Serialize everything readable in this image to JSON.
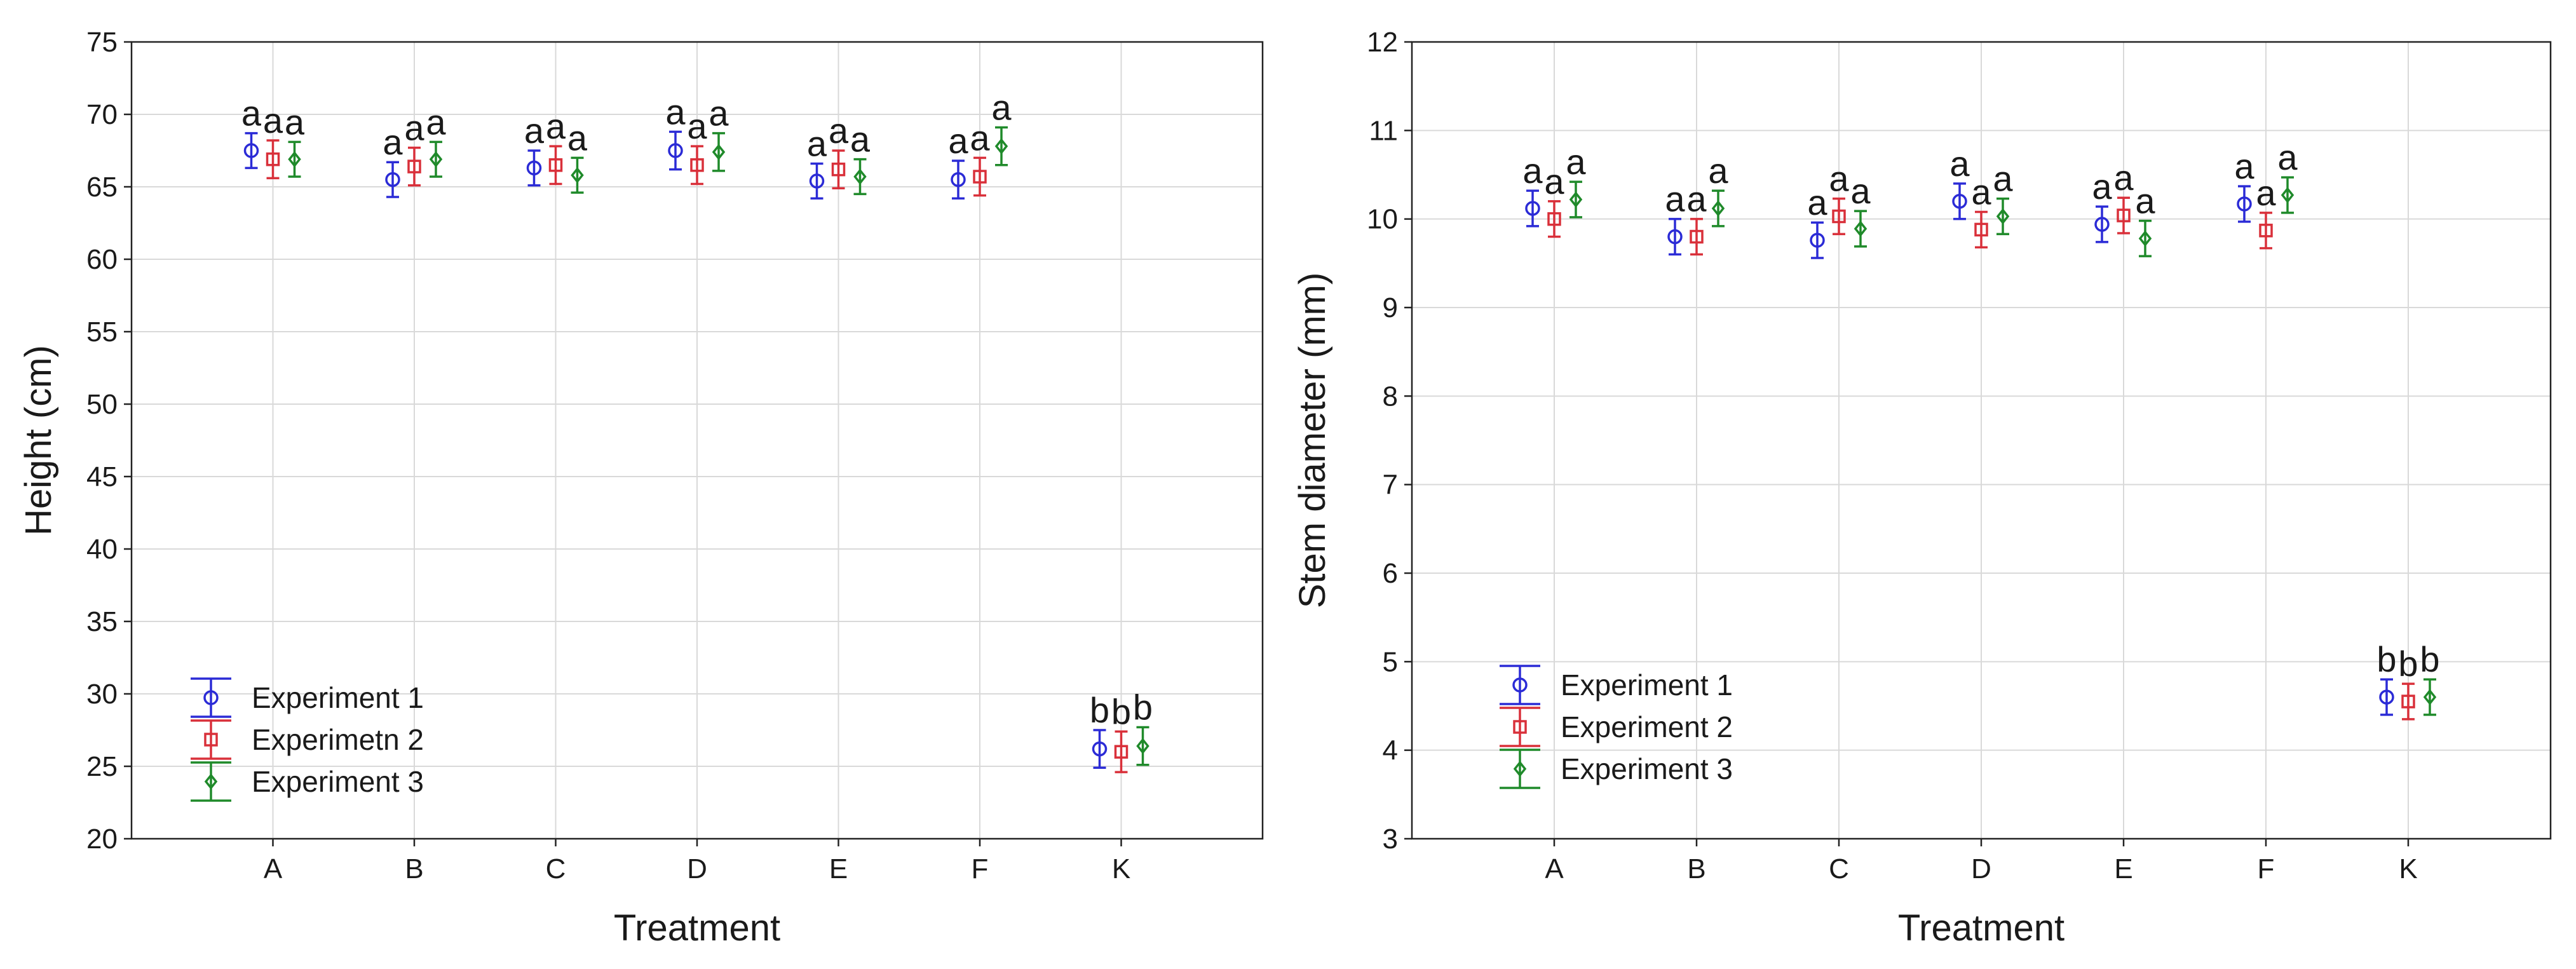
{
  "chart_data": [
    {
      "type": "scatter",
      "xlabel": "Treatment",
      "ylabel": "Height (cm)",
      "categories": [
        "A",
        "B",
        "C",
        "D",
        "E",
        "F",
        "K"
      ],
      "ylim": [
        20,
        75
      ],
      "yticks": [
        20,
        25,
        30,
        35,
        40,
        45,
        50,
        55,
        60,
        65,
        70,
        75
      ],
      "grid": true,
      "legend_position": "bottom-left",
      "series": [
        {
          "name": "Experiment 1",
          "color": "#2b2bd6",
          "marker": "circle",
          "values": [
            67.5,
            65.5,
            66.3,
            67.5,
            65.4,
            65.5,
            26.2
          ],
          "error": [
            1.2,
            1.2,
            1.2,
            1.3,
            1.2,
            1.3,
            1.3
          ],
          "letters": [
            "a",
            "a",
            "a",
            "a",
            "a",
            "a",
            "b"
          ]
        },
        {
          "name": "Experimetn 2",
          "color": "#d9303a",
          "marker": "square",
          "values": [
            66.9,
            66.4,
            66.5,
            66.5,
            66.2,
            65.7,
            26.0
          ],
          "error": [
            1.3,
            1.3,
            1.3,
            1.3,
            1.3,
            1.3,
            1.4
          ],
          "letters": [
            "a",
            "a",
            "a",
            "a",
            "a",
            "a",
            "b"
          ]
        },
        {
          "name": "Experiment 3",
          "color": "#1f8a2a",
          "marker": "diamond",
          "values": [
            66.9,
            66.9,
            65.8,
            67.4,
            65.7,
            67.8,
            26.4
          ],
          "error": [
            1.2,
            1.2,
            1.2,
            1.3,
            1.2,
            1.3,
            1.3
          ],
          "letters": [
            "a",
            "a",
            "a",
            "a",
            "a",
            "a",
            "b"
          ]
        }
      ]
    },
    {
      "type": "scatter",
      "xlabel": "Treatment",
      "ylabel": "Stem diameter (mm)",
      "categories": [
        "A",
        "B",
        "C",
        "D",
        "E",
        "F",
        "K"
      ],
      "ylim": [
        3,
        12
      ],
      "yticks": [
        3,
        4,
        5,
        6,
        7,
        8,
        9,
        10,
        11,
        12
      ],
      "grid": true,
      "legend_position": "bottom-left",
      "series": [
        {
          "name": "Experiment 1",
          "color": "#2b2bd6",
          "marker": "circle",
          "values": [
            10.12,
            9.8,
            9.76,
            10.2,
            9.94,
            10.17,
            4.6
          ],
          "error": [
            0.2,
            0.2,
            0.2,
            0.2,
            0.2,
            0.2,
            0.2
          ],
          "letters": [
            "a",
            "a",
            "a",
            "a",
            "a",
            "a",
            "b"
          ]
        },
        {
          "name": "Experiment 2",
          "color": "#d9303a",
          "marker": "square",
          "values": [
            10.0,
            9.8,
            10.03,
            9.88,
            10.04,
            9.87,
            4.55
          ],
          "error": [
            0.2,
            0.2,
            0.2,
            0.2,
            0.2,
            0.2,
            0.2
          ],
          "letters": [
            "a",
            "a",
            "a",
            "a",
            "a",
            "a",
            "b"
          ]
        },
        {
          "name": "Experiment 3",
          "color": "#1f8a2a",
          "marker": "diamond",
          "values": [
            10.22,
            10.12,
            9.89,
            10.03,
            9.78,
            10.27,
            4.6
          ],
          "error": [
            0.2,
            0.2,
            0.2,
            0.2,
            0.2,
            0.2,
            0.2
          ],
          "letters": [
            "a",
            "a",
            "a",
            "a",
            "a",
            "a",
            "b"
          ]
        }
      ]
    }
  ]
}
